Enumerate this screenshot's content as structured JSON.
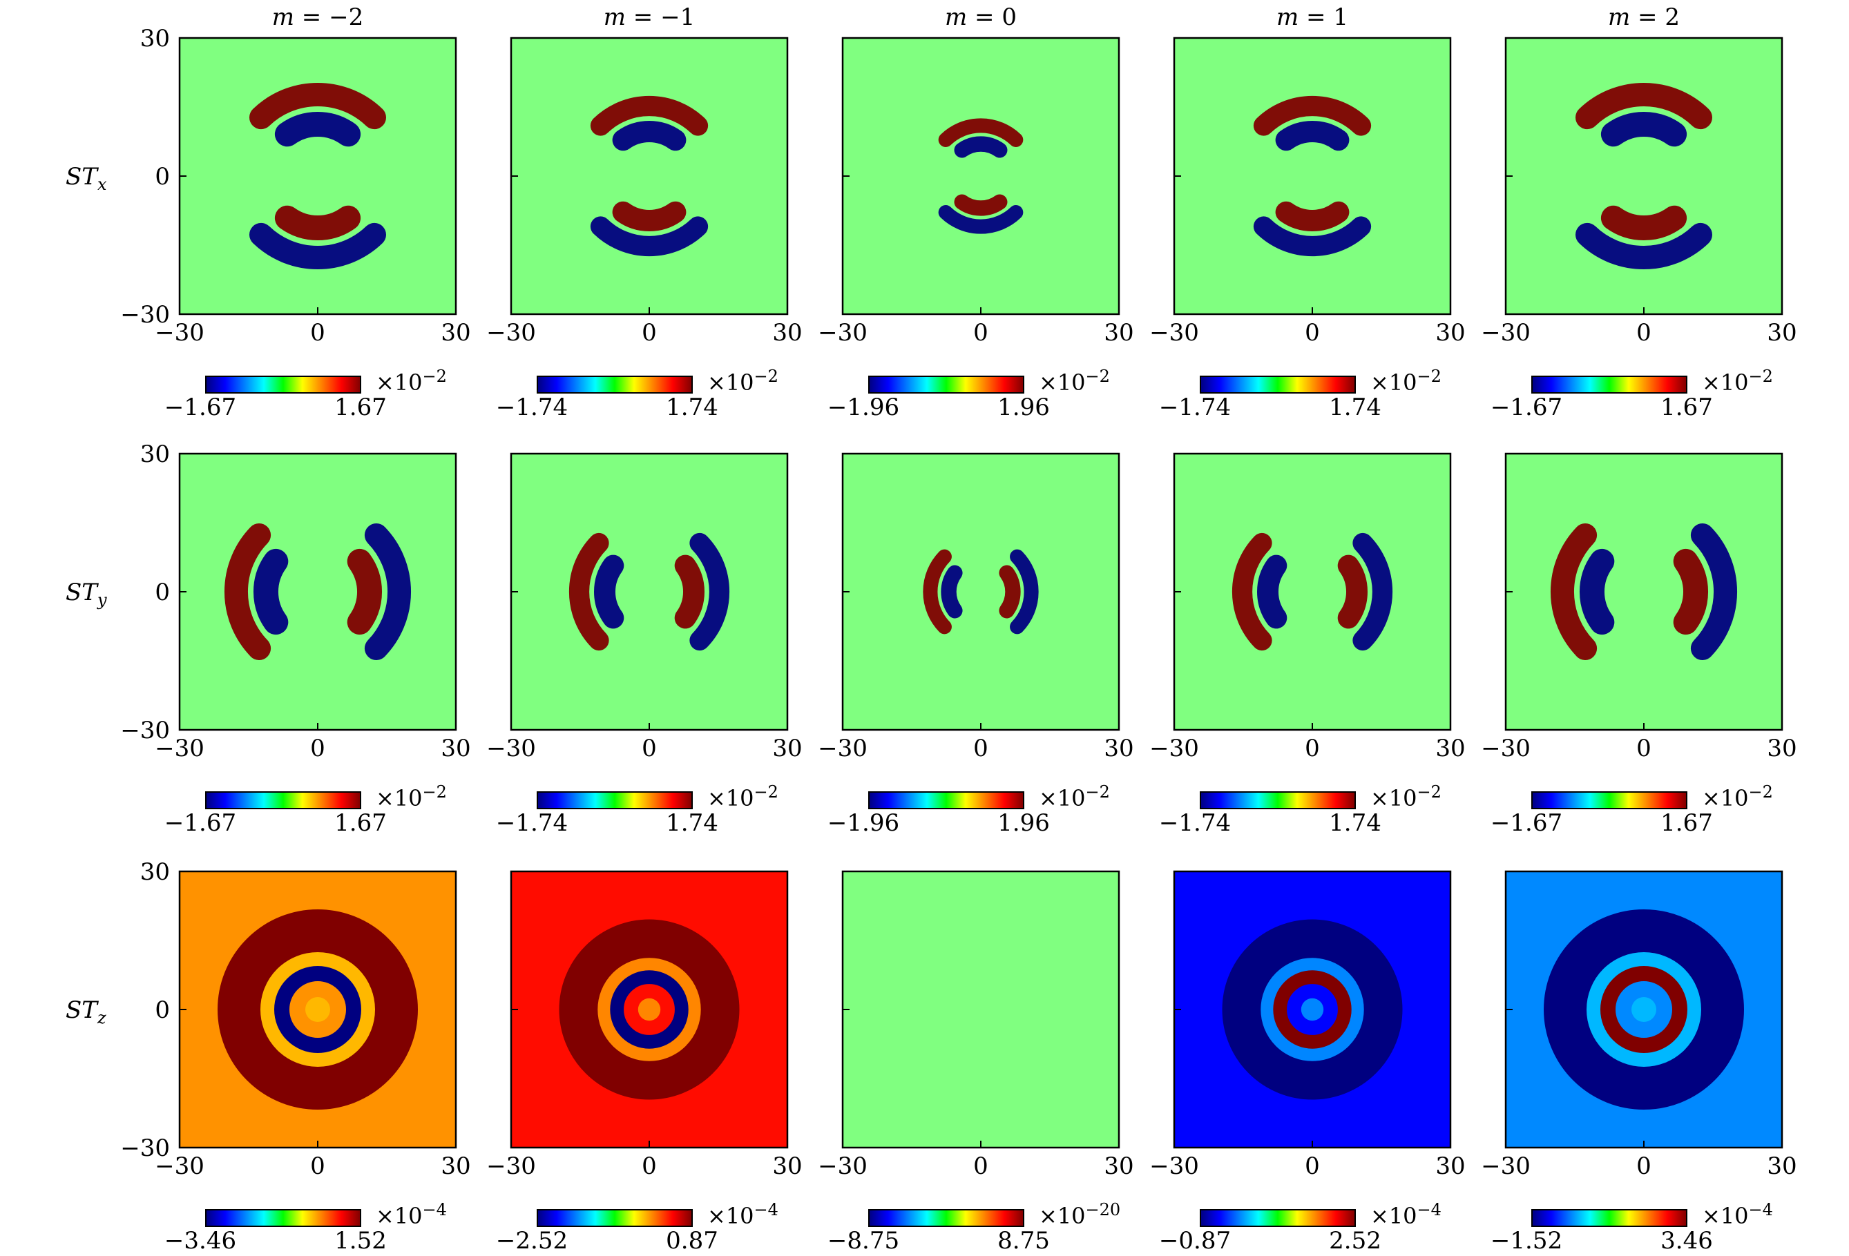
{
  "chart_data": {
    "type": "heatmap",
    "layout": {
      "rows": 3,
      "cols": 5
    },
    "colormap": "jet",
    "column_titles": [
      "m = −2",
      "m = −1",
      "m = 0",
      "m = 1",
      "m = 2"
    ],
    "row_labels": [
      {
        "base": "ST",
        "sub": "x"
      },
      {
        "base": "ST",
        "sub": "y"
      },
      {
        "base": "ST",
        "sub": "z"
      }
    ],
    "xlim": [
      -30,
      30
    ],
    "ylim": [
      -30,
      30
    ],
    "x_ticks": [
      "−30",
      "0",
      "30"
    ],
    "y_ticks": [
      "30",
      "0",
      "−30"
    ],
    "panels": [
      {
        "row": 0,
        "col": 0,
        "m": -2,
        "component": "x",
        "cmin_label": "−1.67",
        "cmax_label": "1.67",
        "exponent": "−2",
        "cmin": -1.67,
        "cmax": 1.67
      },
      {
        "row": 0,
        "col": 1,
        "m": -1,
        "component": "x",
        "cmin_label": "−1.74",
        "cmax_label": "1.74",
        "exponent": "−2",
        "cmin": -1.74,
        "cmax": 1.74
      },
      {
        "row": 0,
        "col": 2,
        "m": 0,
        "component": "x",
        "cmin_label": "−1.96",
        "cmax_label": "1.96",
        "exponent": "−2",
        "cmin": -1.96,
        "cmax": 1.96
      },
      {
        "row": 0,
        "col": 3,
        "m": 1,
        "component": "x",
        "cmin_label": "−1.74",
        "cmax_label": "1.74",
        "exponent": "−2",
        "cmin": -1.74,
        "cmax": 1.74
      },
      {
        "row": 0,
        "col": 4,
        "m": 2,
        "component": "x",
        "cmin_label": "−1.67",
        "cmax_label": "1.67",
        "exponent": "−2",
        "cmin": -1.67,
        "cmax": 1.67
      },
      {
        "row": 1,
        "col": 0,
        "m": -2,
        "component": "y",
        "cmin_label": "−1.67",
        "cmax_label": "1.67",
        "exponent": "−2",
        "cmin": -1.67,
        "cmax": 1.67
      },
      {
        "row": 1,
        "col": 1,
        "m": -1,
        "component": "y",
        "cmin_label": "−1.74",
        "cmax_label": "1.74",
        "exponent": "−2",
        "cmin": -1.74,
        "cmax": 1.74
      },
      {
        "row": 1,
        "col": 2,
        "m": 0,
        "component": "y",
        "cmin_label": "−1.96",
        "cmax_label": "1.96",
        "exponent": "−2",
        "cmin": -1.96,
        "cmax": 1.96
      },
      {
        "row": 1,
        "col": 3,
        "m": 1,
        "component": "y",
        "cmin_label": "−1.74",
        "cmax_label": "1.74",
        "exponent": "−2",
        "cmin": -1.74,
        "cmax": 1.74
      },
      {
        "row": 1,
        "col": 4,
        "m": 2,
        "component": "y",
        "cmin_label": "−1.67",
        "cmax_label": "1.67",
        "exponent": "−2",
        "cmin": -1.67,
        "cmax": 1.67
      },
      {
        "row": 2,
        "col": 0,
        "m": -2,
        "component": "z",
        "cmin_label": "−3.46",
        "cmax_label": "1.52",
        "exponent": "−4",
        "cmin": -3.46,
        "cmax": 1.52
      },
      {
        "row": 2,
        "col": 1,
        "m": -1,
        "component": "z",
        "cmin_label": "−2.52",
        "cmax_label": "0.87",
        "exponent": "−4",
        "cmin": -2.52,
        "cmax": 0.87
      },
      {
        "row": 2,
        "col": 2,
        "m": 0,
        "component": "z",
        "cmin_label": "−8.75",
        "cmax_label": "8.75",
        "exponent": "−20",
        "cmin": -8.75,
        "cmax": 8.75
      },
      {
        "row": 2,
        "col": 3,
        "m": 1,
        "component": "z",
        "cmin_label": "−0.87",
        "cmax_label": "2.52",
        "exponent": "−4",
        "cmin": -0.87,
        "cmax": 2.52
      },
      {
        "row": 2,
        "col": 4,
        "m": 2,
        "component": "z",
        "cmin_label": "−1.52",
        "cmax_label": "3.46",
        "exponent": "−4",
        "cmin": -1.52,
        "cmax": 3.46
      }
    ]
  }
}
